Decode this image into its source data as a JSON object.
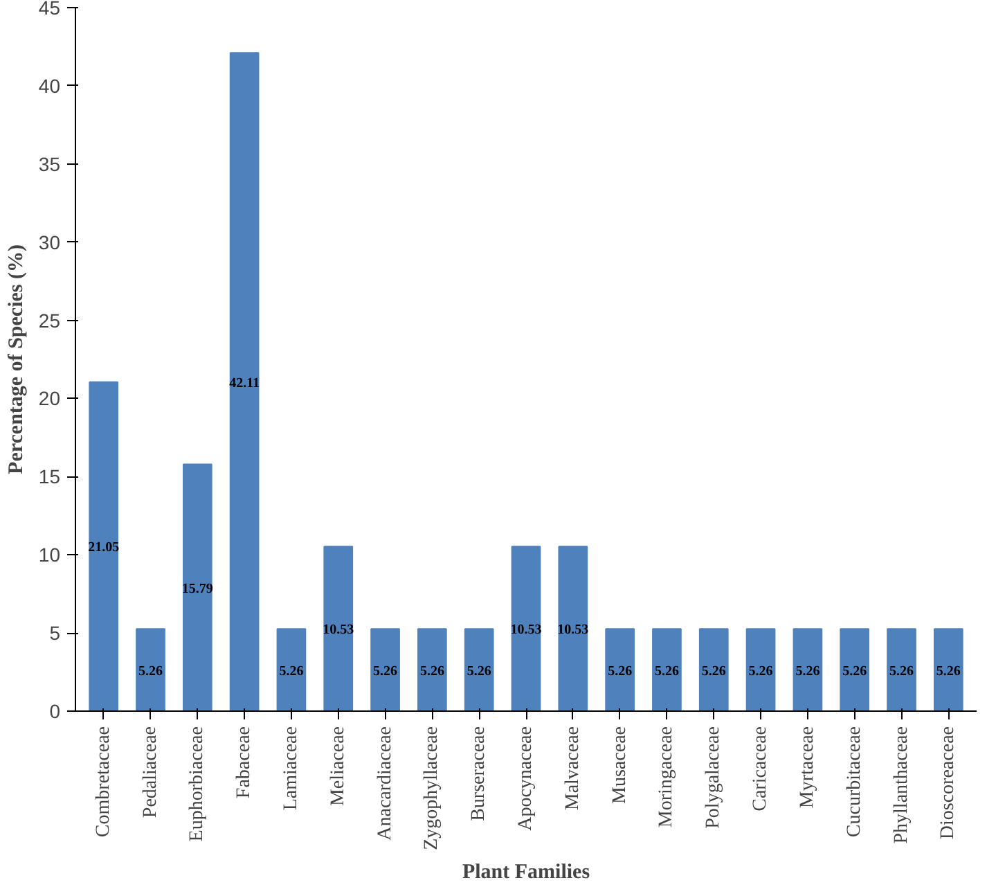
{
  "chart_data": {
    "type": "bar",
    "xlabel": "Plant Families",
    "ylabel": "Percentage of Species (%)",
    "categories": [
      "Combretaceae",
      "Pedaliaceae",
      "Euphorbiaceae",
      "Fabaceae",
      "Lamiaceae",
      "Meliaceae",
      "Anacardiaceae",
      "Zygophyllaceae",
      "Burseraceae",
      "Apocynaceae",
      "Malvaceae",
      "Musaceae",
      "Moringaceae",
      "Polygalaceae",
      "Caricaceae",
      "Myrtaceae",
      "Cucurbitaceae",
      "Phyllanthaceae",
      "Dioscoreaceae"
    ],
    "values": [
      21.05,
      5.26,
      15.79,
      42.11,
      5.26,
      10.53,
      5.26,
      5.26,
      5.26,
      10.53,
      10.53,
      5.26,
      5.26,
      5.26,
      5.26,
      5.26,
      5.26,
      5.26,
      5.26
    ],
    "color": "#4f81bd",
    "ylim": [
      0,
      45
    ],
    "yticks": [
      0,
      5,
      10,
      15,
      20,
      25,
      30,
      35,
      40,
      45
    ],
    "grid": false,
    "data_labels": true
  }
}
